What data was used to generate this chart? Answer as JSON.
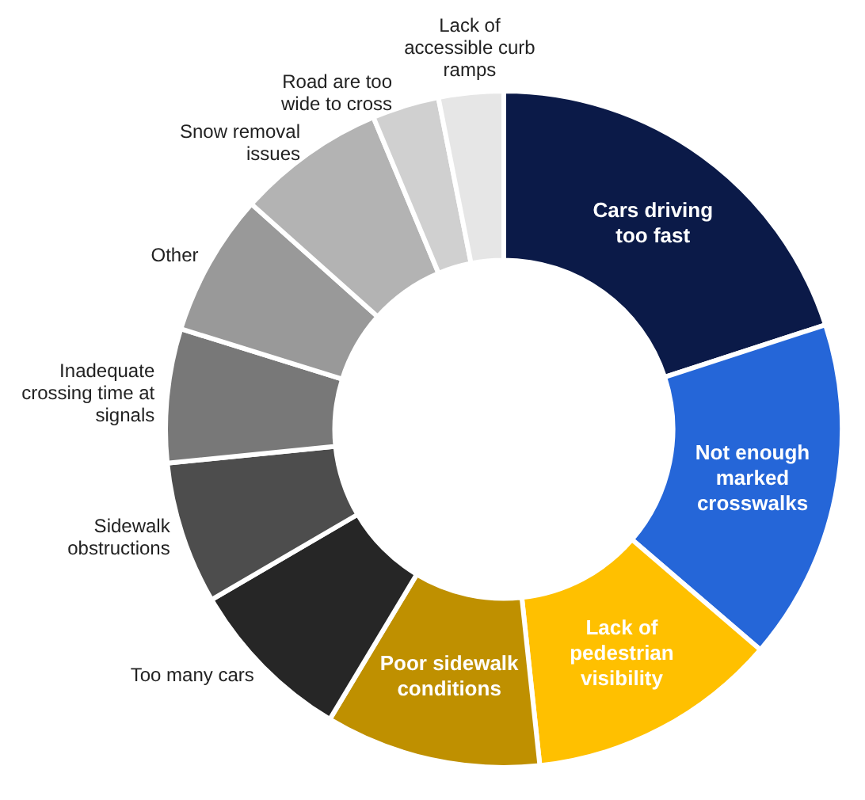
{
  "chart_data": {
    "type": "donut",
    "categories": [
      "Cars driving too fast",
      "Not enough marked crosswalks",
      "Lack of pedestrian visibility",
      "Poor sidewalk conditions",
      "Too many cars",
      "Sidewalk obstructions",
      "Inadequate crossing time at signals",
      "Other",
      "Snow removal issues",
      "Road are too wide to cross",
      "Lack of accessible curb ramps"
    ],
    "values": [
      20,
      16.3,
      12,
      10.3,
      8,
      6.8,
      6.4,
      6.8,
      7.1,
      3.2,
      3.1
    ],
    "colors": [
      "#0b1a48",
      "#2566d8",
      "#ffc000",
      "#bf9000",
      "#262626",
      "#4d4d4d",
      "#787878",
      "#999999",
      "#b3b3b3",
      "#d0d0d0",
      "#e6e6e6"
    ],
    "legend": false
  }
}
